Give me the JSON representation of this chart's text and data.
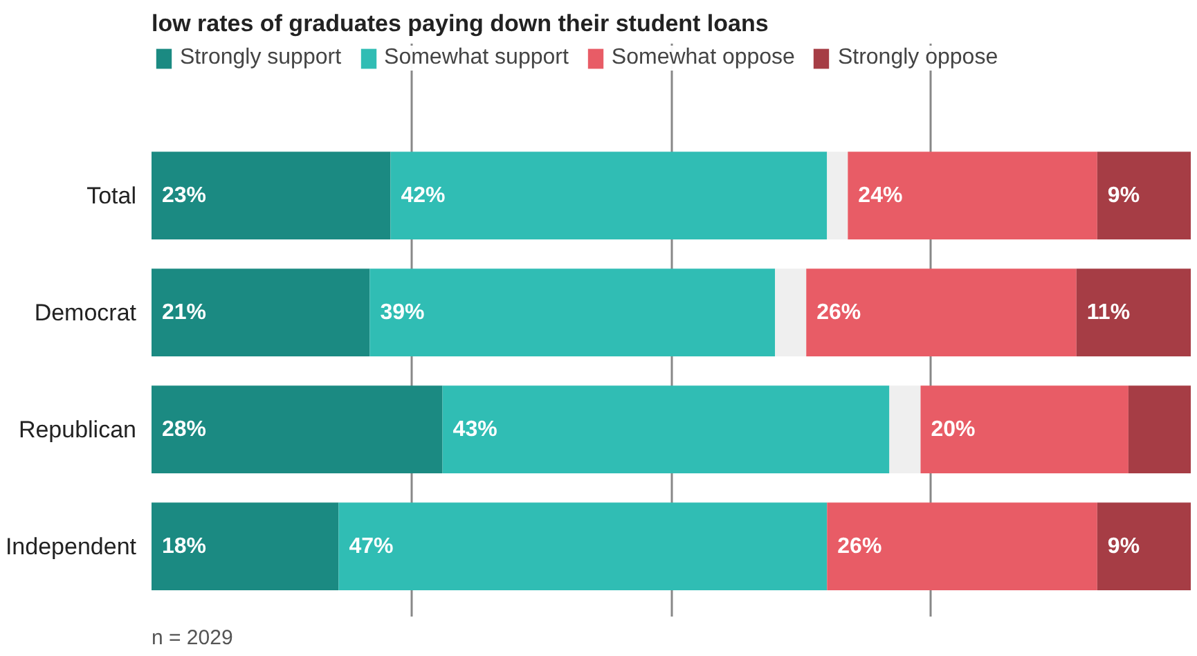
{
  "chart_data": {
    "type": "bar",
    "orientation": "horizontal",
    "stacked": true,
    "title": "low rates of graduates paying down their student loans",
    "categories": [
      "Total",
      "Democrat",
      "Republican",
      "Independent"
    ],
    "series": [
      {
        "name": "Strongly support",
        "color": "#1b8a82",
        "values": [
          23,
          21,
          28,
          18
        ],
        "value_labels": [
          "23%",
          "21%",
          "28%",
          "18%"
        ]
      },
      {
        "name": "Somewhat support",
        "color": "#30bdb4",
        "values": [
          42,
          39,
          43,
          47
        ],
        "value_labels": [
          "42%",
          "39%",
          "43%",
          "47%"
        ]
      },
      {
        "color": "#efefef",
        "values": [
          2,
          3,
          3,
          0
        ]
      },
      {
        "name": "Somewhat oppose",
        "color": "#e85c66",
        "values": [
          24,
          26,
          20,
          26
        ],
        "value_labels": [
          "24%",
          "26%",
          "20%",
          "26%"
        ]
      },
      {
        "name": "Strongly oppose",
        "color": "#a63d45",
        "values": [
          9,
          11,
          6,
          9
        ],
        "value_labels": [
          "9%",
          "11%",
          null,
          "9%"
        ]
      }
    ],
    "xlim": [
      0,
      100
    ],
    "xticks": [
      {
        "value": 25,
        "label": null
      },
      {
        "value": 50,
        "label": null
      },
      {
        "value": 75,
        "label": null
      }
    ],
    "grid": "x",
    "tick_labels": "y",
    "legend": "top",
    "annotations": [
      "n = 2029"
    ]
  }
}
